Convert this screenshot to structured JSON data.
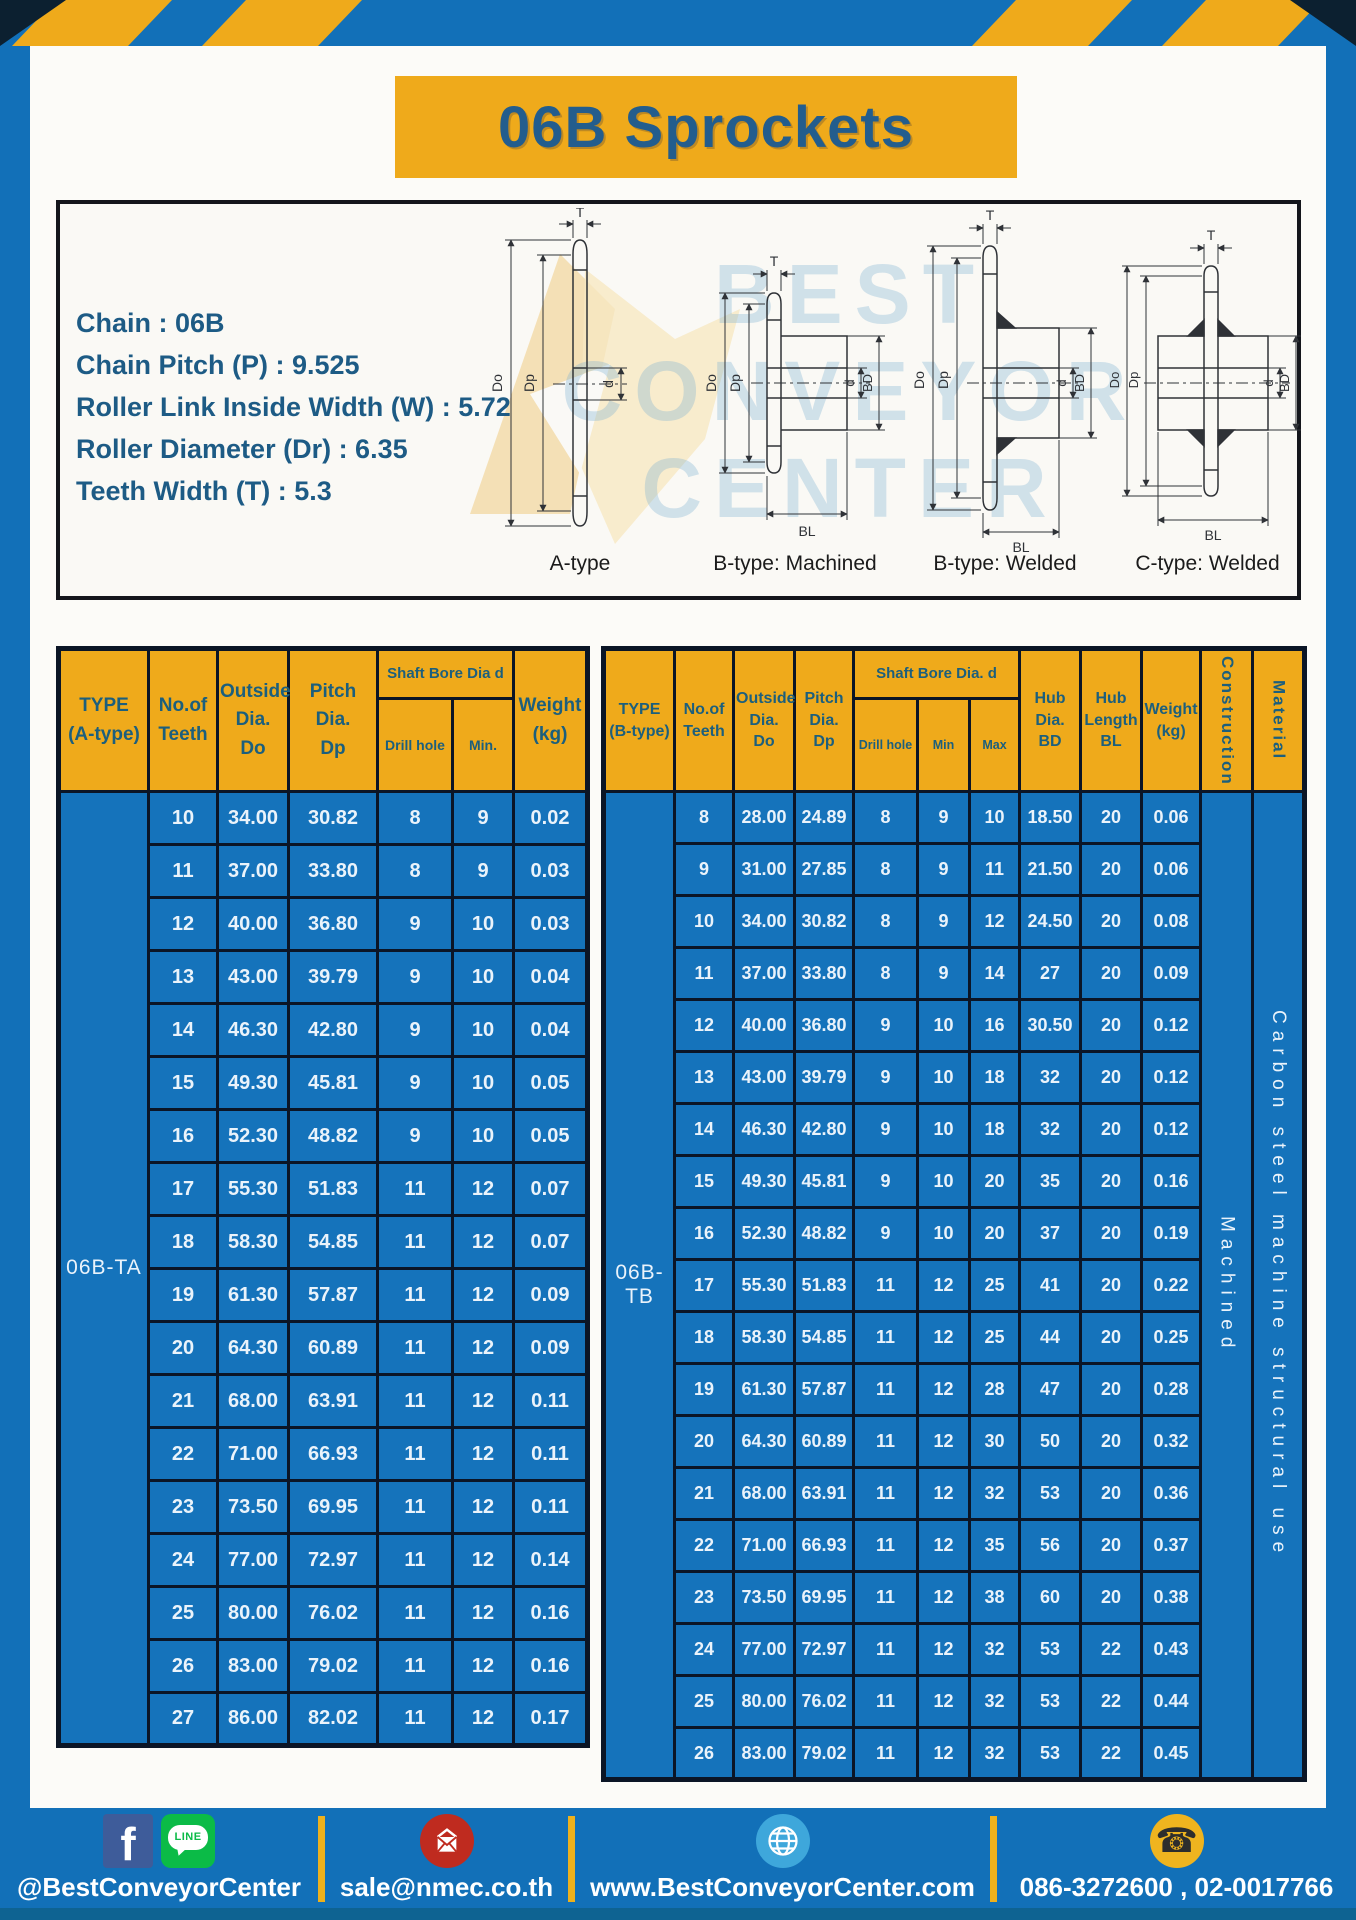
{
  "title": "06B Sprockets",
  "specs": {
    "lines": [
      "Chain : 06B",
      "Chain Pitch (P) : 9.525",
      "Roller Link Inside Width (W) : 5.72",
      "Roller Diameter (Dr) : 6.35",
      "Teeth Width (T) : 5.3"
    ]
  },
  "diagram": {
    "watermark_lines": [
      "BEST",
      "CONVEYOR",
      "CENTER"
    ],
    "captions": [
      "A-type",
      "B-type: Machined",
      "B-type: Welded",
      "C-type: Welded"
    ],
    "dims": {
      "t": "T",
      "outside": "Do",
      "pitch": "Dp",
      "bore": "d",
      "hub_dia": "BD",
      "hub_len": "BL"
    }
  },
  "table_a": {
    "headers": {
      "type": "TYPE\n(A-type)",
      "teeth": "No.of\nTeeth",
      "outside": "Outside\nDia.\nDo",
      "pitch": "Pitch Dia.\nDp",
      "shaft_bore": "Shaft Bore Dia d",
      "drill": "Drill hole",
      "min": "Min.",
      "weight": "Weight\n(kg)"
    },
    "type_label": "06B-TA",
    "rows": [
      [
        "10",
        "34.00",
        "30.82",
        "8",
        "9",
        "0.02"
      ],
      [
        "11",
        "37.00",
        "33.80",
        "8",
        "9",
        "0.03"
      ],
      [
        "12",
        "40.00",
        "36.80",
        "9",
        "10",
        "0.03"
      ],
      [
        "13",
        "43.00",
        "39.79",
        "9",
        "10",
        "0.04"
      ],
      [
        "14",
        "46.30",
        "42.80",
        "9",
        "10",
        "0.04"
      ],
      [
        "15",
        "49.30",
        "45.81",
        "9",
        "10",
        "0.05"
      ],
      [
        "16",
        "52.30",
        "48.82",
        "9",
        "10",
        "0.05"
      ],
      [
        "17",
        "55.30",
        "51.83",
        "11",
        "12",
        "0.07"
      ],
      [
        "18",
        "58.30",
        "54.85",
        "11",
        "12",
        "0.07"
      ],
      [
        "19",
        "61.30",
        "57.87",
        "11",
        "12",
        "0.09"
      ],
      [
        "20",
        "64.30",
        "60.89",
        "11",
        "12",
        "0.09"
      ],
      [
        "21",
        "68.00",
        "63.91",
        "11",
        "12",
        "0.11"
      ],
      [
        "22",
        "71.00",
        "66.93",
        "11",
        "12",
        "0.11"
      ],
      [
        "23",
        "73.50",
        "69.95",
        "11",
        "12",
        "0.11"
      ],
      [
        "24",
        "77.00",
        "72.97",
        "11",
        "12",
        "0.14"
      ],
      [
        "25",
        "80.00",
        "76.02",
        "11",
        "12",
        "0.16"
      ],
      [
        "26",
        "83.00",
        "79.02",
        "11",
        "12",
        "0.16"
      ],
      [
        "27",
        "86.00",
        "82.02",
        "11",
        "12",
        "0.17"
      ]
    ]
  },
  "table_b": {
    "headers": {
      "type": "TYPE\n(B-type)",
      "teeth": "No.of\nTeeth",
      "outside": "Outside\nDia.\nDo",
      "pitch": "Pitch\nDia.\nDp",
      "shaft_bore": "Shaft Bore Dia. d",
      "drill": "Drill hole",
      "min": "Min",
      "max": "Max",
      "hub_dia": "Hub\nDia.\nBD",
      "hub_len": "Hub\nLength\nBL",
      "weight": "Weight\n(kg)",
      "construction": "Construction",
      "material": "Material"
    },
    "type_label": "06B-TB",
    "construction_value": "Machined",
    "material_value": "Carbon steel machine structural use",
    "rows": [
      [
        "8",
        "28.00",
        "24.89",
        "8",
        "9",
        "10",
        "18.50",
        "20",
        "0.06"
      ],
      [
        "9",
        "31.00",
        "27.85",
        "8",
        "9",
        "11",
        "21.50",
        "20",
        "0.06"
      ],
      [
        "10",
        "34.00",
        "30.82",
        "8",
        "9",
        "12",
        "24.50",
        "20",
        "0.08"
      ],
      [
        "11",
        "37.00",
        "33.80",
        "8",
        "9",
        "14",
        "27",
        "20",
        "0.09"
      ],
      [
        "12",
        "40.00",
        "36.80",
        "9",
        "10",
        "16",
        "30.50",
        "20",
        "0.12"
      ],
      [
        "13",
        "43.00",
        "39.79",
        "9",
        "10",
        "18",
        "32",
        "20",
        "0.12"
      ],
      [
        "14",
        "46.30",
        "42.80",
        "9",
        "10",
        "18",
        "32",
        "20",
        "0.12"
      ],
      [
        "15",
        "49.30",
        "45.81",
        "9",
        "10",
        "20",
        "35",
        "20",
        "0.16"
      ],
      [
        "16",
        "52.30",
        "48.82",
        "9",
        "10",
        "20",
        "37",
        "20",
        "0.19"
      ],
      [
        "17",
        "55.30",
        "51.83",
        "11",
        "12",
        "25",
        "41",
        "20",
        "0.22"
      ],
      [
        "18",
        "58.30",
        "54.85",
        "11",
        "12",
        "25",
        "44",
        "20",
        "0.25"
      ],
      [
        "19",
        "61.30",
        "57.87",
        "11",
        "12",
        "28",
        "47",
        "20",
        "0.28"
      ],
      [
        "20",
        "64.30",
        "60.89",
        "11",
        "12",
        "30",
        "50",
        "20",
        "0.32"
      ],
      [
        "21",
        "68.00",
        "63.91",
        "11",
        "12",
        "32",
        "53",
        "20",
        "0.36"
      ],
      [
        "22",
        "71.00",
        "66.93",
        "11",
        "12",
        "35",
        "56",
        "20",
        "0.37"
      ],
      [
        "23",
        "73.50",
        "69.95",
        "11",
        "12",
        "38",
        "60",
        "20",
        "0.38"
      ],
      [
        "24",
        "77.00",
        "72.97",
        "11",
        "12",
        "32",
        "53",
        "22",
        "0.43"
      ],
      [
        "25",
        "80.00",
        "76.02",
        "11",
        "12",
        "32",
        "53",
        "22",
        "0.44"
      ],
      [
        "26",
        "83.00",
        "79.02",
        "11",
        "12",
        "32",
        "53",
        "22",
        "0.45"
      ]
    ]
  },
  "footer": {
    "line_badge": "LINE",
    "items": [
      {
        "label": "@BestConveyorCenter"
      },
      {
        "label": "sale@nmec.co.th"
      },
      {
        "label": "www.BestConveyorCenter.com"
      },
      {
        "label": "086-3272600 , 02-0017766"
      }
    ]
  },
  "colors": {
    "primary_blue": "#1270b8",
    "accent_yellow": "#efaa1b",
    "border_navy": "#0b1526",
    "header_text_teal": "#1c5f7d",
    "title_text_blue": "#235d8d",
    "facebook_blue": "#3e5c9a",
    "line_green": "#0bbb47",
    "mail_red": "#bf2b1f",
    "globe_blue": "#3ea7db",
    "phone_yellow": "#efb41f"
  }
}
